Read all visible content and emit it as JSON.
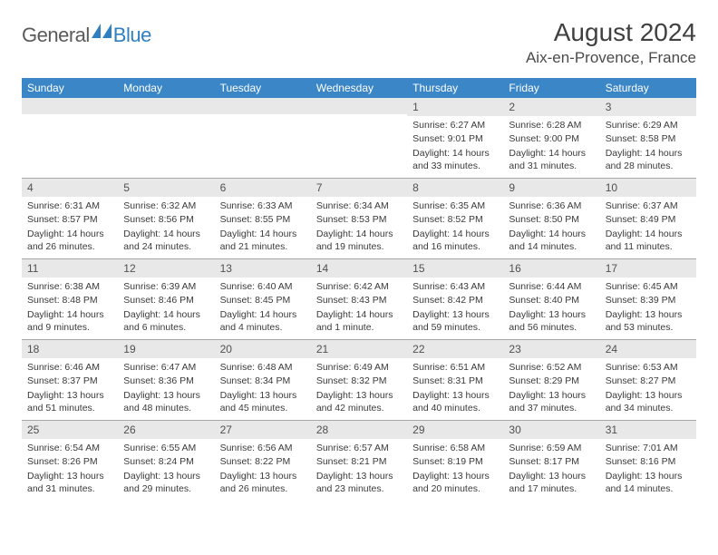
{
  "brand": {
    "word1": "General",
    "word2": "Blue"
  },
  "title": "August 2024",
  "location": "Aix-en-Provence, France",
  "colors": {
    "header_bg": "#3a86c6",
    "header_text": "#ffffff",
    "strip_bg": "#e8e8e8",
    "body_text": "#3a3a3a",
    "rule": "#a8a8a8",
    "brand_grey": "#5a5a5a",
    "brand_blue": "#2f7fc1"
  },
  "weekdays": [
    "Sunday",
    "Monday",
    "Tuesday",
    "Wednesday",
    "Thursday",
    "Friday",
    "Saturday"
  ],
  "weeks": [
    [
      null,
      null,
      null,
      null,
      {
        "n": "1",
        "sr": "6:27 AM",
        "ss": "9:01 PM",
        "dl": "14 hours and 33 minutes."
      },
      {
        "n": "2",
        "sr": "6:28 AM",
        "ss": "9:00 PM",
        "dl": "14 hours and 31 minutes."
      },
      {
        "n": "3",
        "sr": "6:29 AM",
        "ss": "8:58 PM",
        "dl": "14 hours and 28 minutes."
      }
    ],
    [
      {
        "n": "4",
        "sr": "6:31 AM",
        "ss": "8:57 PM",
        "dl": "14 hours and 26 minutes."
      },
      {
        "n": "5",
        "sr": "6:32 AM",
        "ss": "8:56 PM",
        "dl": "14 hours and 24 minutes."
      },
      {
        "n": "6",
        "sr": "6:33 AM",
        "ss": "8:55 PM",
        "dl": "14 hours and 21 minutes."
      },
      {
        "n": "7",
        "sr": "6:34 AM",
        "ss": "8:53 PM",
        "dl": "14 hours and 19 minutes."
      },
      {
        "n": "8",
        "sr": "6:35 AM",
        "ss": "8:52 PM",
        "dl": "14 hours and 16 minutes."
      },
      {
        "n": "9",
        "sr": "6:36 AM",
        "ss": "8:50 PM",
        "dl": "14 hours and 14 minutes."
      },
      {
        "n": "10",
        "sr": "6:37 AM",
        "ss": "8:49 PM",
        "dl": "14 hours and 11 minutes."
      }
    ],
    [
      {
        "n": "11",
        "sr": "6:38 AM",
        "ss": "8:48 PM",
        "dl": "14 hours and 9 minutes."
      },
      {
        "n": "12",
        "sr": "6:39 AM",
        "ss": "8:46 PM",
        "dl": "14 hours and 6 minutes."
      },
      {
        "n": "13",
        "sr": "6:40 AM",
        "ss": "8:45 PM",
        "dl": "14 hours and 4 minutes."
      },
      {
        "n": "14",
        "sr": "6:42 AM",
        "ss": "8:43 PM",
        "dl": "14 hours and 1 minute."
      },
      {
        "n": "15",
        "sr": "6:43 AM",
        "ss": "8:42 PM",
        "dl": "13 hours and 59 minutes."
      },
      {
        "n": "16",
        "sr": "6:44 AM",
        "ss": "8:40 PM",
        "dl": "13 hours and 56 minutes."
      },
      {
        "n": "17",
        "sr": "6:45 AM",
        "ss": "8:39 PM",
        "dl": "13 hours and 53 minutes."
      }
    ],
    [
      {
        "n": "18",
        "sr": "6:46 AM",
        "ss": "8:37 PM",
        "dl": "13 hours and 51 minutes."
      },
      {
        "n": "19",
        "sr": "6:47 AM",
        "ss": "8:36 PM",
        "dl": "13 hours and 48 minutes."
      },
      {
        "n": "20",
        "sr": "6:48 AM",
        "ss": "8:34 PM",
        "dl": "13 hours and 45 minutes."
      },
      {
        "n": "21",
        "sr": "6:49 AM",
        "ss": "8:32 PM",
        "dl": "13 hours and 42 minutes."
      },
      {
        "n": "22",
        "sr": "6:51 AM",
        "ss": "8:31 PM",
        "dl": "13 hours and 40 minutes."
      },
      {
        "n": "23",
        "sr": "6:52 AM",
        "ss": "8:29 PM",
        "dl": "13 hours and 37 minutes."
      },
      {
        "n": "24",
        "sr": "6:53 AM",
        "ss": "8:27 PM",
        "dl": "13 hours and 34 minutes."
      }
    ],
    [
      {
        "n": "25",
        "sr": "6:54 AM",
        "ss": "8:26 PM",
        "dl": "13 hours and 31 minutes."
      },
      {
        "n": "26",
        "sr": "6:55 AM",
        "ss": "8:24 PM",
        "dl": "13 hours and 29 minutes."
      },
      {
        "n": "27",
        "sr": "6:56 AM",
        "ss": "8:22 PM",
        "dl": "13 hours and 26 minutes."
      },
      {
        "n": "28",
        "sr": "6:57 AM",
        "ss": "8:21 PM",
        "dl": "13 hours and 23 minutes."
      },
      {
        "n": "29",
        "sr": "6:58 AM",
        "ss": "8:19 PM",
        "dl": "13 hours and 20 minutes."
      },
      {
        "n": "30",
        "sr": "6:59 AM",
        "ss": "8:17 PM",
        "dl": "13 hours and 17 minutes."
      },
      {
        "n": "31",
        "sr": "7:01 AM",
        "ss": "8:16 PM",
        "dl": "13 hours and 14 minutes."
      }
    ]
  ],
  "labels": {
    "sunrise": "Sunrise: ",
    "sunset": "Sunset: ",
    "daylight": "Daylight: "
  }
}
